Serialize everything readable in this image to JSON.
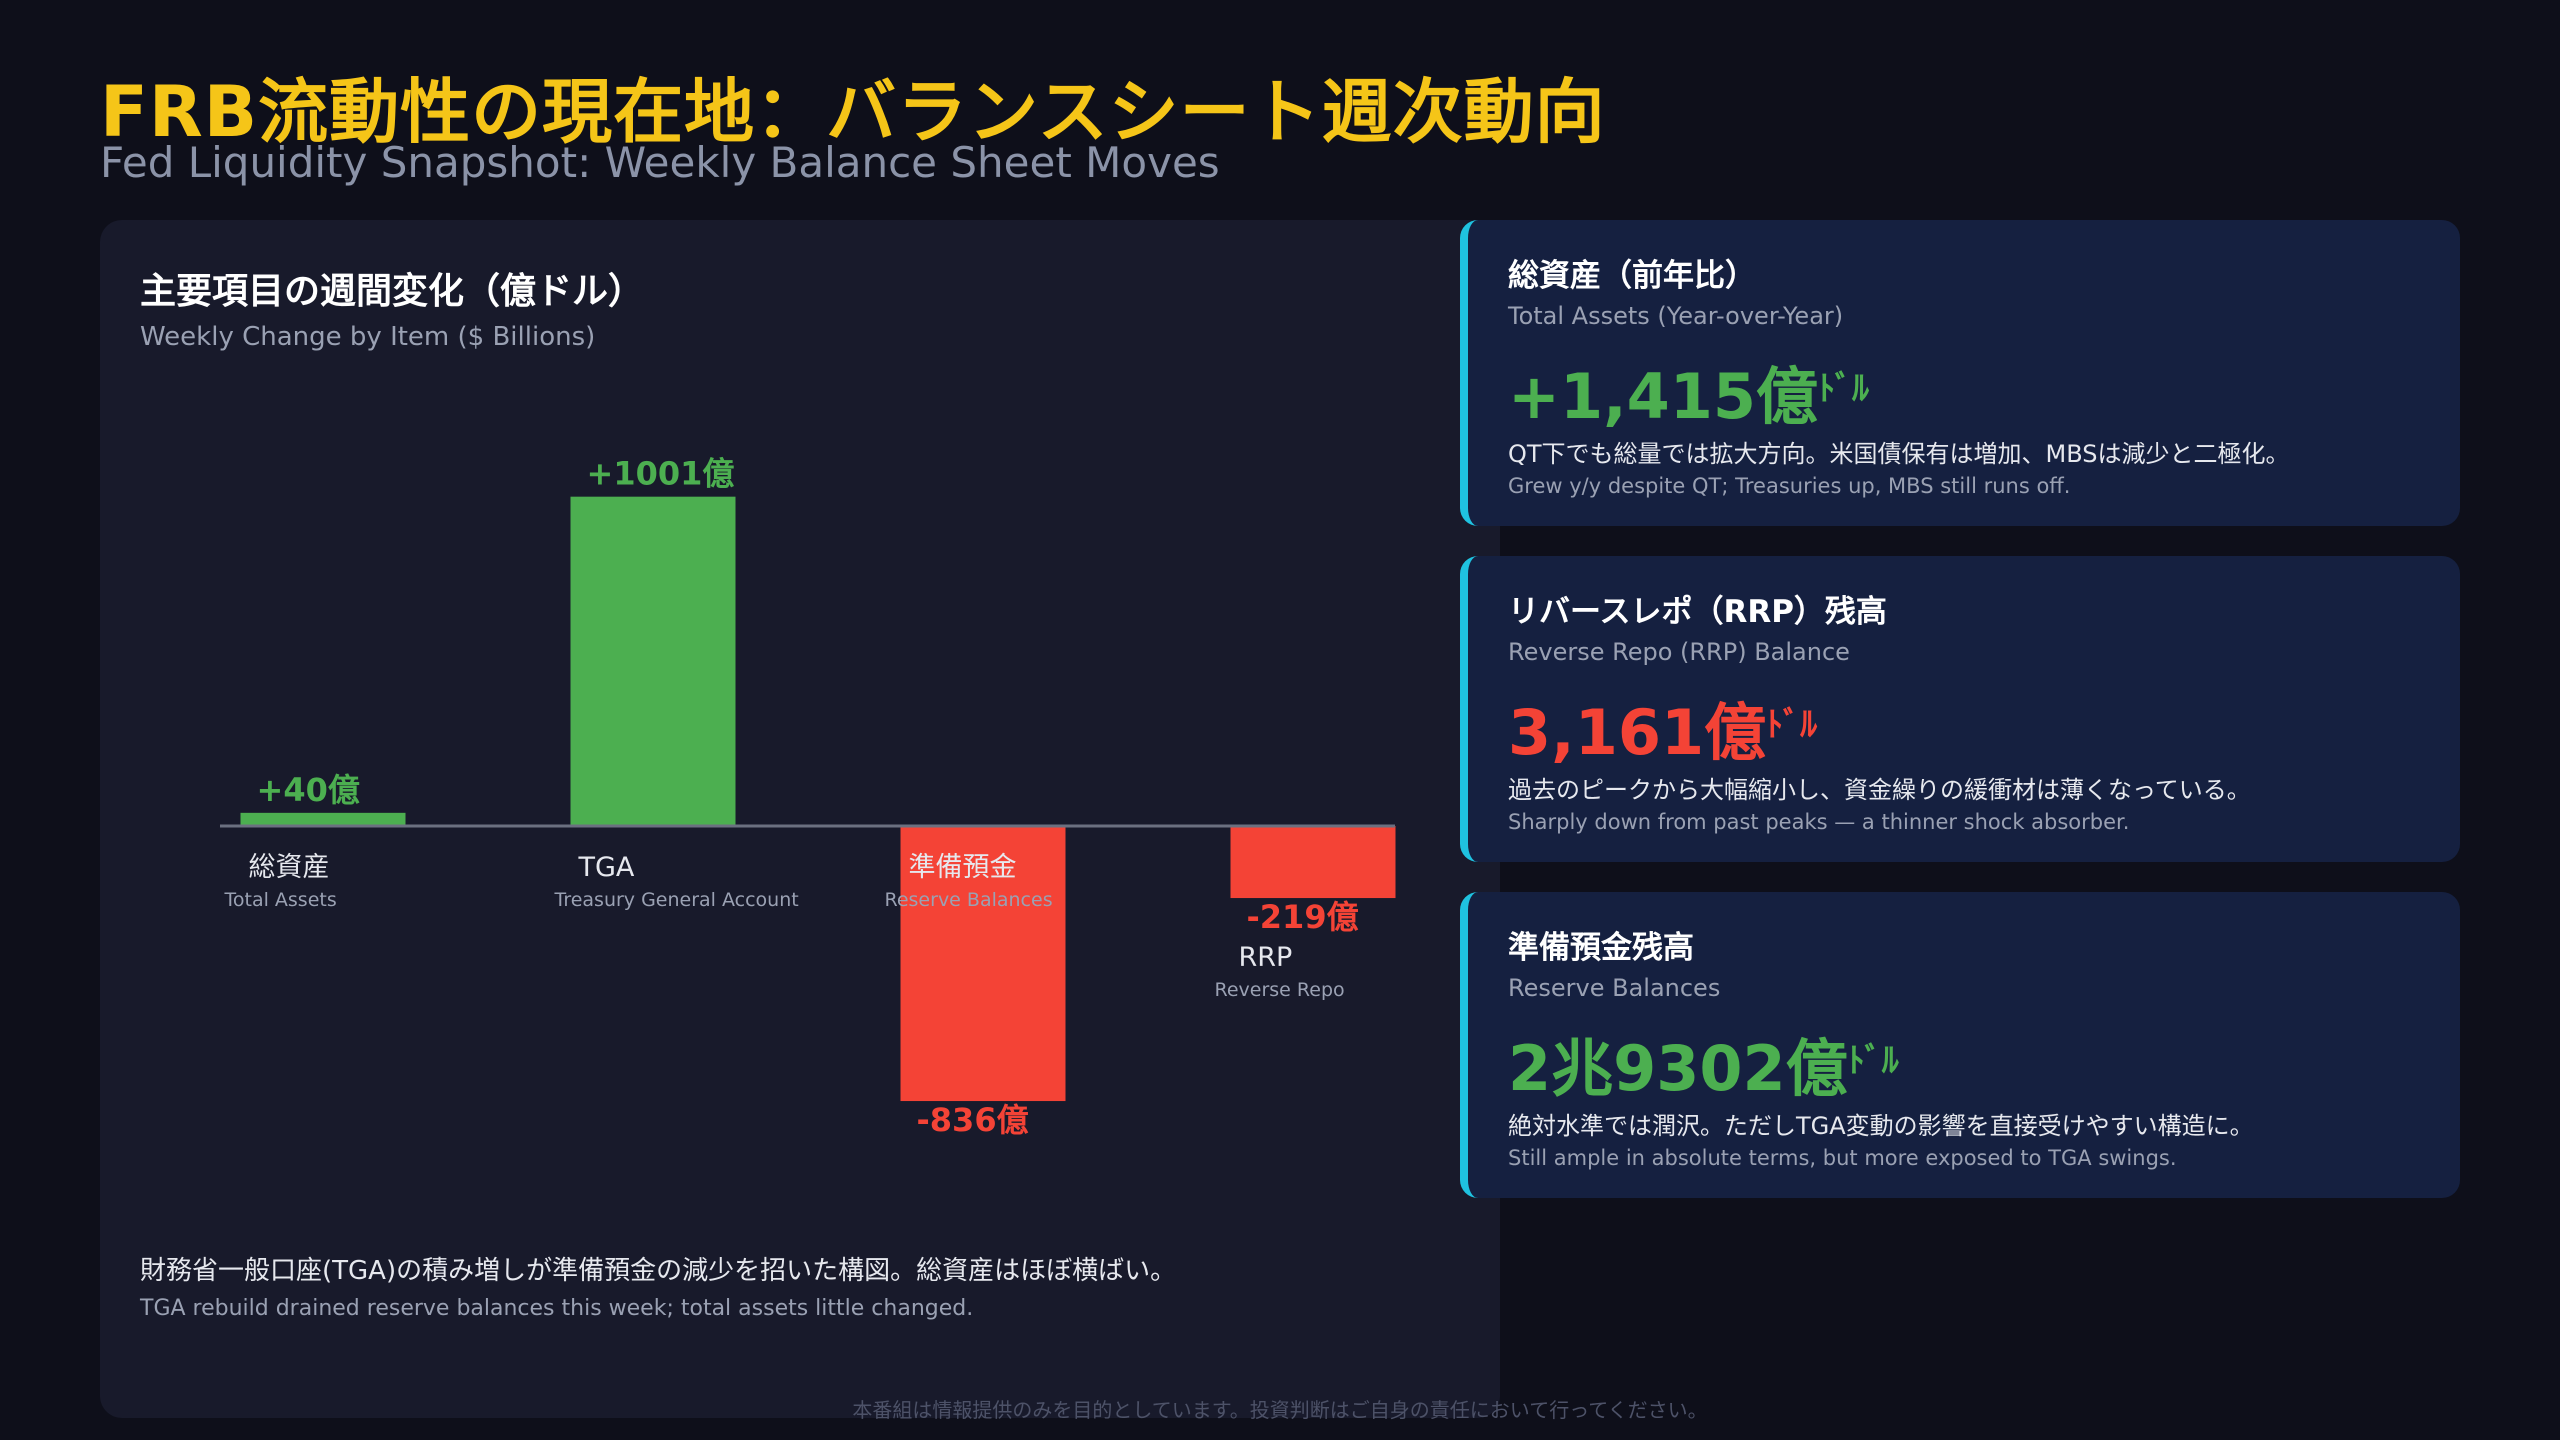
{
  "header": {
    "title_jp": "FRB流動性の現在地：バランスシート週次動向",
    "title_en": "Fed Liquidity Snapshot: Weekly Balance Sheet Moves"
  },
  "chart_panel": {
    "title_jp": "主要項目の週間変化（億ドル）",
    "title_en": "Weekly Change by Item ($ Billions)",
    "note_jp": "財務省一般口座(TGA)の積み増しが準備預金の減少を招いた構図。総資産はほぼ横ばい。",
    "note_en": "TGA rebuild drained reserve balances this week; total assets little changed."
  },
  "chart_data": {
    "type": "bar",
    "title": "主要項目の週間変化（億ドル）",
    "subtitle": "Weekly Change by Item ($ Billions)",
    "categories": [
      "総資産",
      "TGA",
      "準備預金",
      "RRP"
    ],
    "categories_en": [
      "Total Assets",
      "Treasury General Account",
      "Reserve Balances",
      "Reverse Repo"
    ],
    "values": [
      40,
      1001,
      -836,
      -219
    ],
    "data_labels": [
      "+40億",
      "+1001億",
      "-836億",
      "-219億"
    ],
    "ylim": [
      -836,
      1001
    ],
    "grid": false,
    "colors": {
      "positive": "#4caf50",
      "negative": "#f44336",
      "baseline": "#6b7080"
    }
  },
  "cards": [
    {
      "title_jp": "総資産（前年比）",
      "title_en": "Total Assets (Year-over-Year)",
      "value": "+1,415億",
      "unit": "ﾄﾞﾙ",
      "color": "#4caf50",
      "desc_jp": "QT下でも総量では拡大方向。米国債保有は増加、MBSは減少と二極化。",
      "desc_en": "Grew y/y despite QT; Treasuries up, MBS still runs off."
    },
    {
      "title_jp": "リバースレポ（RRP）残高",
      "title_en": "Reverse Repo (RRP) Balance",
      "value": "3,161億",
      "unit": "ﾄﾞﾙ",
      "color": "#f44336",
      "desc_jp": "過去のピークから大幅縮小し、資金繰りの緩衝材は薄くなっている。",
      "desc_en": "Sharply down from past peaks — a thinner shock absorber."
    },
    {
      "title_jp": "準備預金残高",
      "title_en": "Reserve Balances",
      "value": "2兆9302億",
      "unit": "ﾄﾞﾙ",
      "color": "#4caf50",
      "desc_jp": "絶対水準では潤沢。ただしTGA変動の影響を直接受けやすい構造に。",
      "desc_en": "Still ample in absolute terms, but more exposed to TGA swings."
    }
  ],
  "colors": {
    "accent": "#f5c518",
    "card_border": "#1fc2e0",
    "positive": "#4caf50",
    "negative": "#f44336"
  },
  "footer": {
    "disclaimer": "本番組は情報提供のみを目的としています。投資判断はご自身の責任において行ってください。"
  }
}
